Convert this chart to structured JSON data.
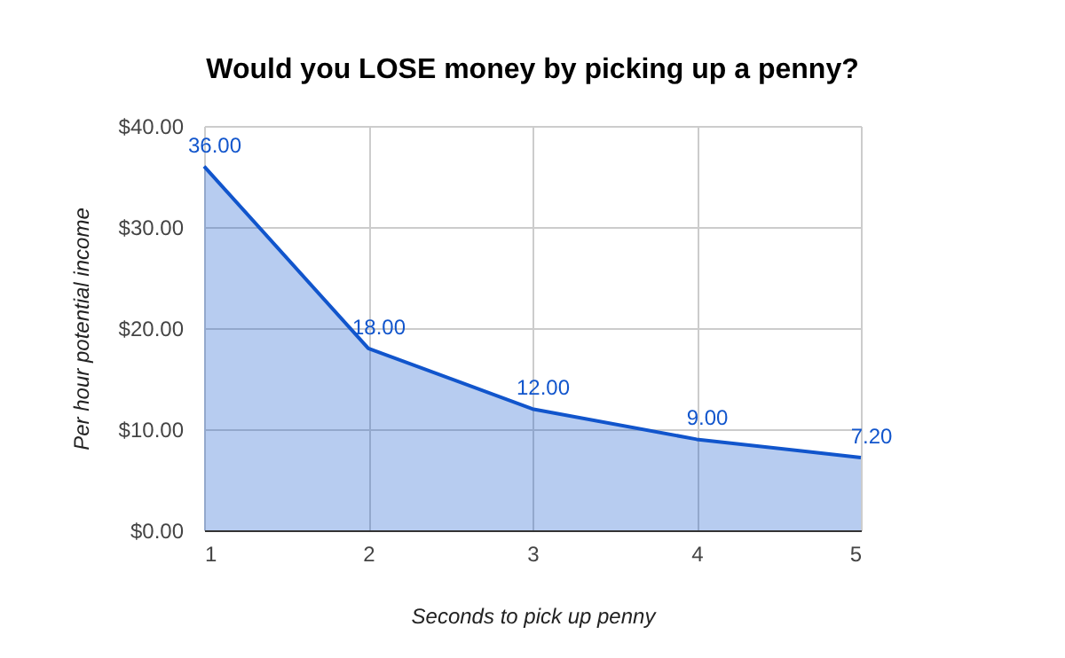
{
  "chart_data": {
    "type": "area",
    "title": "Would you LOSE money by picking up a penny?",
    "xlabel": "Seconds to pick up penny",
    "ylabel": "Per hour potential income",
    "x": [
      1,
      2,
      3,
      4,
      5
    ],
    "series": [
      {
        "color": "#1155cc",
        "values": [
          36,
          18,
          12,
          9,
          7.2
        ],
        "value_labels": [
          "36.00",
          "18.00",
          "12.00",
          "9.00",
          "7.20"
        ]
      }
    ],
    "xlim": [
      1,
      5
    ],
    "xticks": [
      1,
      2,
      3,
      4,
      5
    ],
    "ylim": [
      0,
      40
    ],
    "yticks": [
      {
        "value": 0,
        "label": "$0.00"
      },
      {
        "value": 10,
        "label": "$10.00"
      },
      {
        "value": 20,
        "label": "$20.00"
      },
      {
        "value": 30,
        "label": "$30.00"
      },
      {
        "value": 40,
        "label": "$40.00"
      }
    ],
    "grid": true
  }
}
